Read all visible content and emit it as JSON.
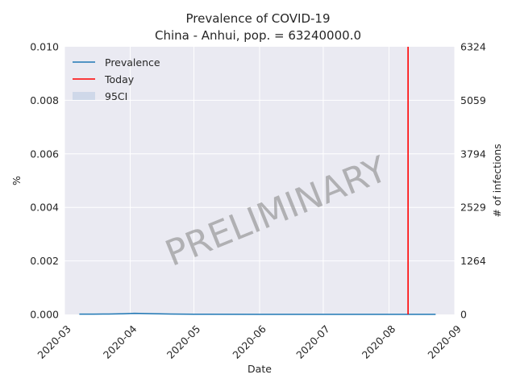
{
  "chart_data": {
    "type": "line",
    "title": "Prevalence of COVID-19",
    "subtitle": "China - Anhui, pop. = 63240000.0",
    "xlabel": "Date",
    "ylabel": "%",
    "y2label": "# of infections",
    "xlim": [
      "2020-03-01",
      "2020-09-01"
    ],
    "ylim": [
      0,
      0.01
    ],
    "x_ticks": [
      "2020-03",
      "2020-04",
      "2020-05",
      "2020-06",
      "2020-07",
      "2020-08",
      "2020-09"
    ],
    "y_ticks": [
      "0.000",
      "0.002",
      "0.004",
      "0.006",
      "0.008",
      "0.010"
    ],
    "y2_ticks": [
      "0",
      "1264",
      "2529",
      "3794",
      "5059",
      "6324"
    ],
    "series": [
      {
        "name": "Prevalence",
        "color": "#1f77b4",
        "x": [
          "2020-03-08",
          "2020-03-15",
          "2020-03-22",
          "2020-03-29",
          "2020-04-03",
          "2020-04-10",
          "2020-04-20",
          "2020-05-01",
          "2020-06-01",
          "2020-07-01",
          "2020-08-01",
          "2020-08-23"
        ],
        "y": [
          1e-05,
          1.2e-05,
          1.5e-05,
          2.5e-05,
          4e-05,
          3e-05,
          1.5e-05,
          8e-06,
          4e-06,
          3e-06,
          2e-06,
          2e-06
        ]
      }
    ],
    "band": {
      "name": "95CI",
      "color": "#b0c4de",
      "lower": [
        5e-06,
        6e-06,
        8e-06,
        1.5e-05,
        2.5e-05,
        2e-05,
        8e-06,
        4e-06,
        2e-06,
        1e-06,
        1e-06,
        1e-06
      ],
      "upper": [
        1.5e-05,
        1.8e-05,
        2.2e-05,
        3.5e-05,
        5.5e-05,
        4e-05,
        2.2e-05,
        1.2e-05,
        6e-06,
        5e-06,
        3e-06,
        3e-06
      ]
    },
    "today": {
      "name": "Today",
      "date": "2020-08-10",
      "color": "#ff0000"
    },
    "legend": {
      "placement": "top-left",
      "entries": [
        "Prevalence",
        "Today",
        "95CI"
      ]
    },
    "grid": true,
    "watermark": "PRELIMINARY"
  }
}
